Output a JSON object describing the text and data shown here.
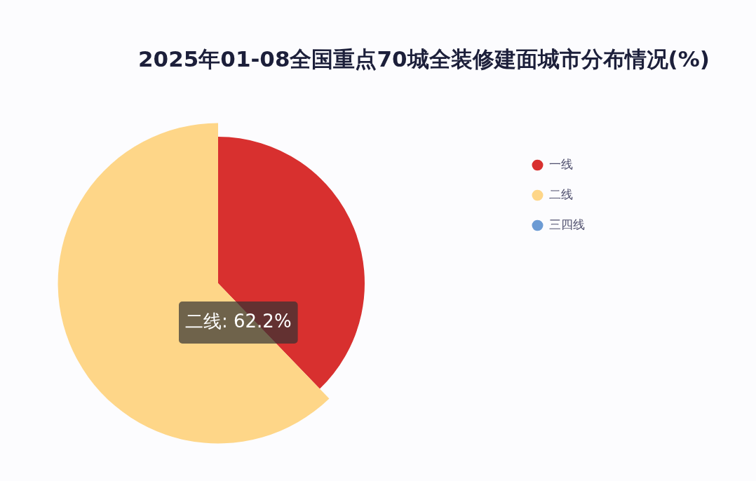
{
  "chart_data": {
    "type": "pie",
    "title": "2025年01-08全国重点70城全装修建面城市分布情况(%)",
    "categories": [
      "一线",
      "二线",
      "三四线"
    ],
    "values": [
      37.8,
      62.2,
      0
    ],
    "colors": [
      "#d8302f",
      "#fed688",
      "#6c9bd4"
    ],
    "value_labels": [
      null,
      "二线: 62.2%",
      null
    ],
    "legend": "top right"
  }
}
